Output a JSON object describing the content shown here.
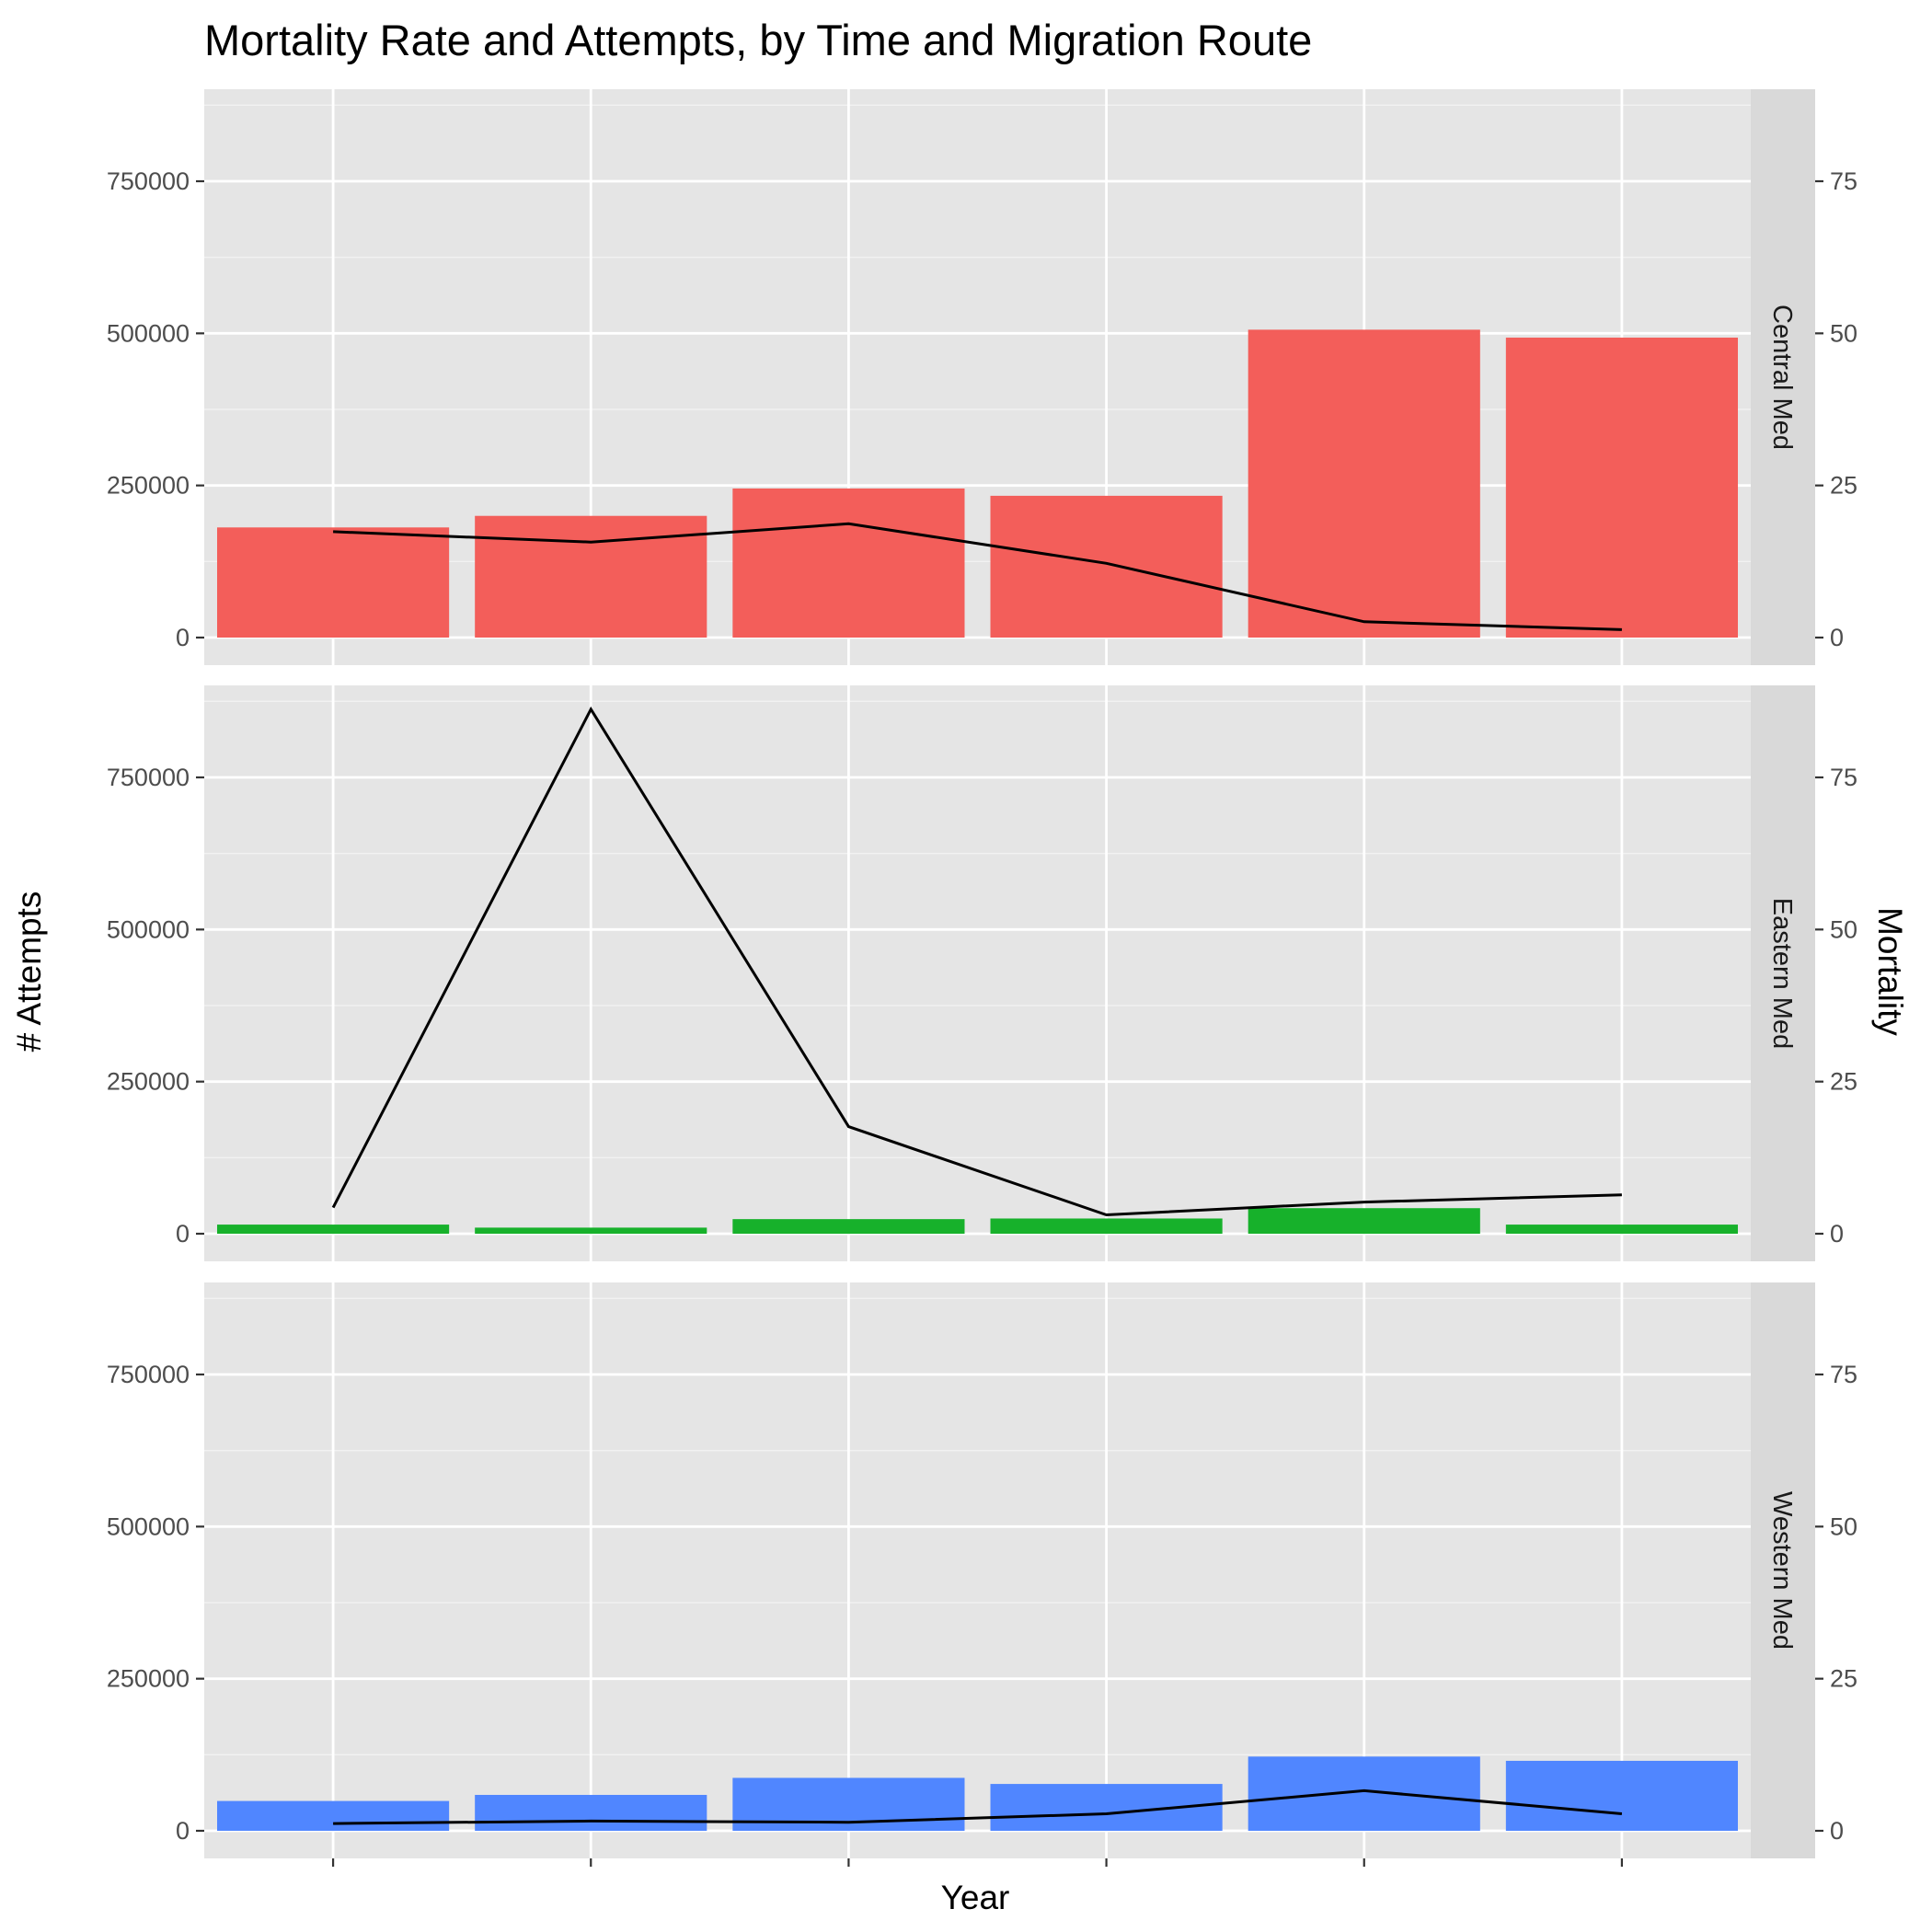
{
  "chart_data": {
    "type": "bar",
    "title": "Mortality Rate and Attempts, by Time and Migration Route",
    "xlabel": "Year",
    "ylabel": "# Attempts",
    "y2label": "Mortality",
    "ylim": [
      0,
      900000
    ],
    "y2lim": [
      0,
      90
    ],
    "yticks": [
      0,
      250000,
      500000,
      750000
    ],
    "y2ticks": [
      0,
      25,
      50,
      75
    ],
    "grid": true,
    "facets": [
      {
        "name": "Central Med",
        "color": "#F35E5A",
        "attempts": [
          181000,
          200000,
          245000,
          233000,
          506000,
          493000
        ],
        "mortality": [
          17.4,
          15.7,
          18.7,
          12.2,
          2.6,
          1.3
        ]
      },
      {
        "name": "Eastern Med",
        "color": "#17B12B",
        "attempts": [
          15000,
          10000,
          24000,
          25000,
          42000,
          15000
        ],
        "mortality": [
          4.3,
          86.2,
          17.6,
          3.1,
          5.2,
          6.4
        ]
      },
      {
        "name": "Western Med",
        "color": "#5086FF",
        "attempts": [
          49000,
          59000,
          87000,
          77000,
          122000,
          115000
        ],
        "mortality": [
          1.2,
          1.6,
          1.4,
          2.8,
          6.6,
          2.8
        ]
      }
    ]
  }
}
